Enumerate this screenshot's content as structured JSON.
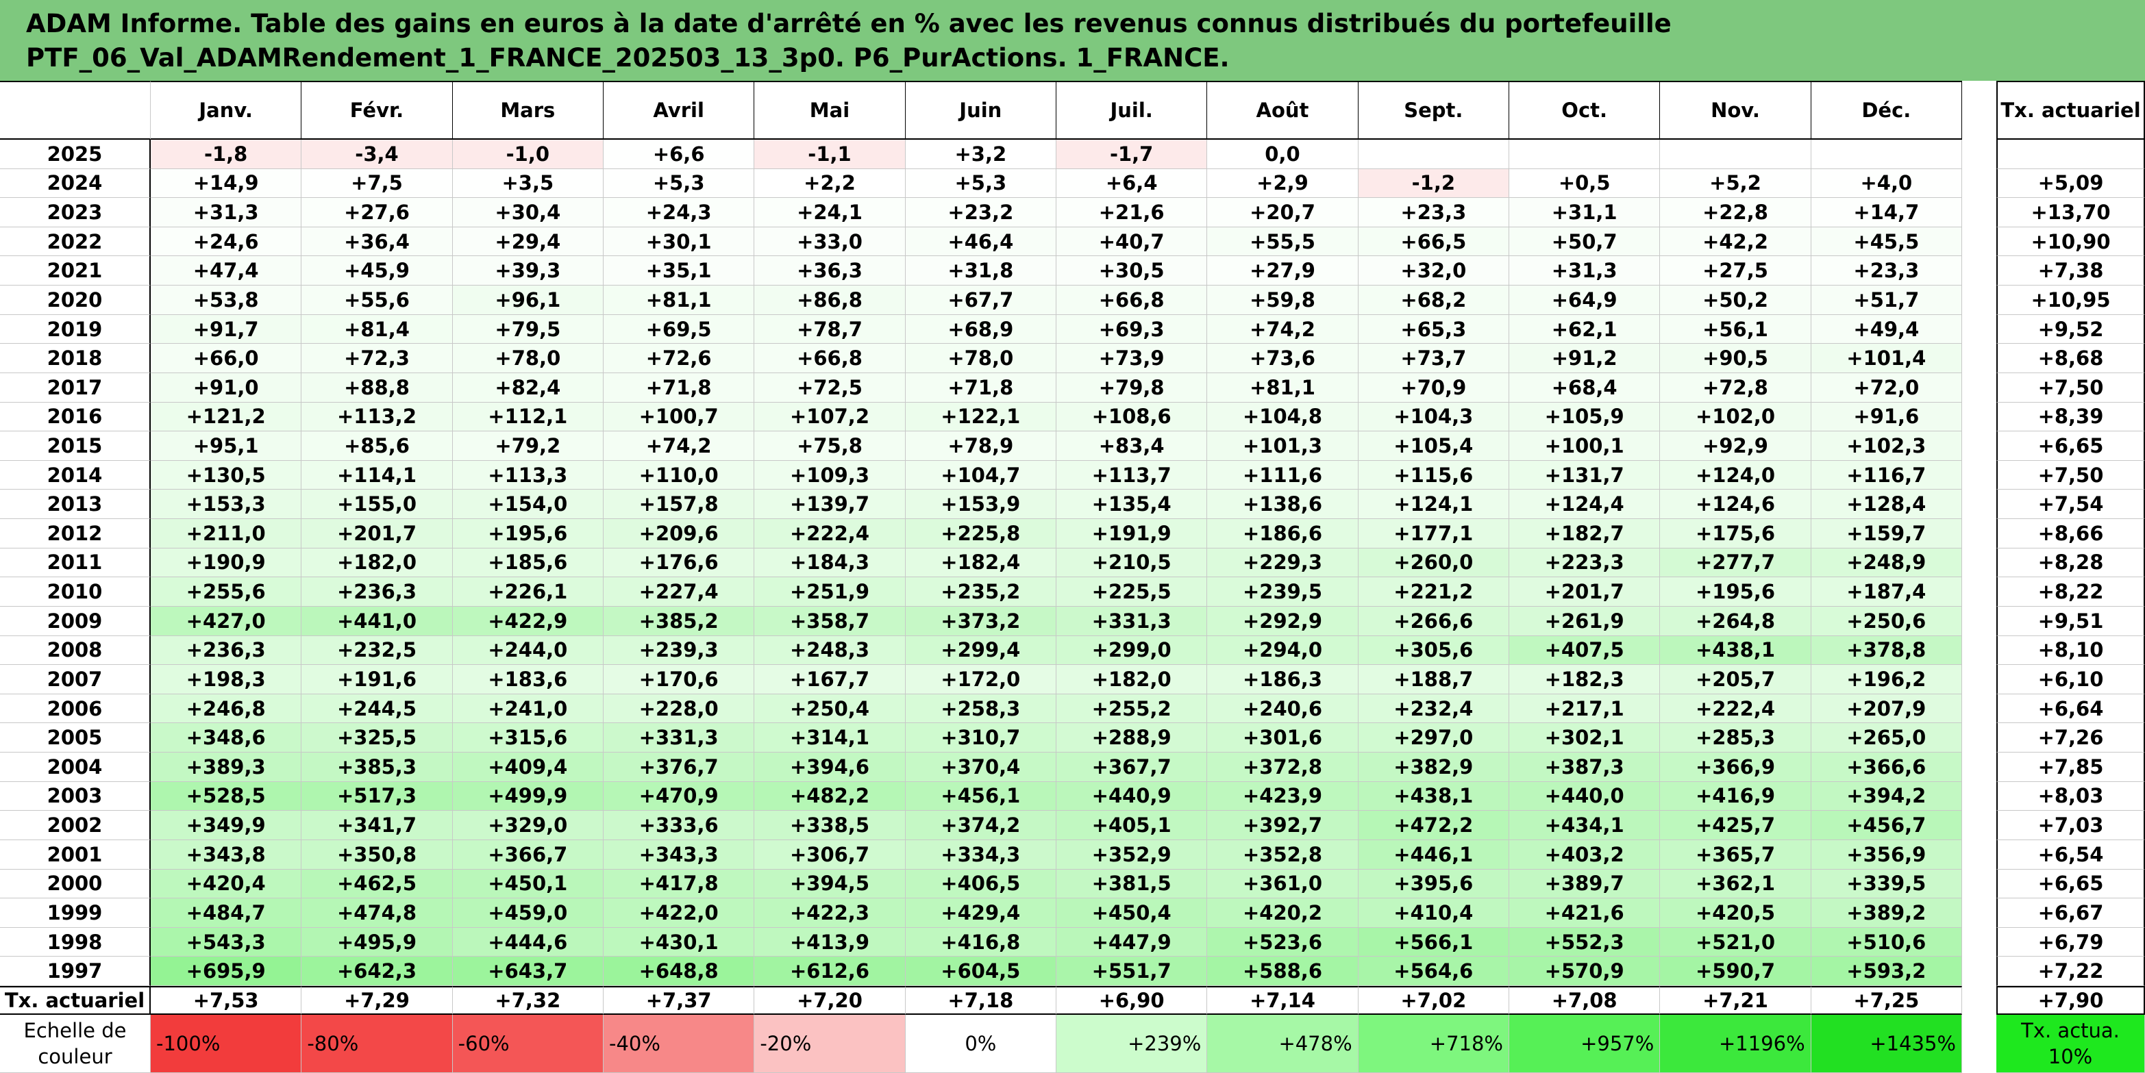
{
  "header": {
    "title_line1": "ADAM Informe. Table des gains en euros à la date d'arrêté en % avec les revenus connus distribués du portefeuille",
    "title_line2": "PTF_06_Val_ADAMRendement_1_FRANCE_202503_13_3p0. P6_PurActions. 1_FRANCE."
  },
  "table": {
    "months": [
      "Janv.",
      "Févr.",
      "Mars",
      "Avril",
      "Mai",
      "Juin",
      "Juil.",
      "Août",
      "Sept.",
      "Oct.",
      "Nov.",
      "Déc."
    ],
    "rate_header": "Tx. actuariel",
    "rows": [
      {
        "year": "2025",
        "values": [
          "-1,8",
          "-3,4",
          "-1,0",
          "+6,6",
          "-1,1",
          "+3,2",
          "-1,7",
          "0,0",
          null,
          null,
          null,
          null
        ],
        "rate": null
      },
      {
        "year": "2024",
        "values": [
          "+14,9",
          "+7,5",
          "+3,5",
          "+5,3",
          "+2,2",
          "+5,3",
          "+6,4",
          "+2,9",
          "-1,2",
          "+0,5",
          "+5,2",
          "+4,0"
        ],
        "rate": "+5,09"
      },
      {
        "year": "2023",
        "values": [
          "+31,3",
          "+27,6",
          "+30,4",
          "+24,3",
          "+24,1",
          "+23,2",
          "+21,6",
          "+20,7",
          "+23,3",
          "+31,1",
          "+22,8",
          "+14,7"
        ],
        "rate": "+13,70"
      },
      {
        "year": "2022",
        "values": [
          "+24,6",
          "+36,4",
          "+29,4",
          "+30,1",
          "+33,0",
          "+46,4",
          "+40,7",
          "+55,5",
          "+66,5",
          "+50,7",
          "+42,2",
          "+45,5"
        ],
        "rate": "+10,90"
      },
      {
        "year": "2021",
        "values": [
          "+47,4",
          "+45,9",
          "+39,3",
          "+35,1",
          "+36,3",
          "+31,8",
          "+30,5",
          "+27,9",
          "+32,0",
          "+31,3",
          "+27,5",
          "+23,3"
        ],
        "rate": "+7,38"
      },
      {
        "year": "2020",
        "values": [
          "+53,8",
          "+55,6",
          "+96,1",
          "+81,1",
          "+86,8",
          "+67,7",
          "+66,8",
          "+59,8",
          "+68,2",
          "+64,9",
          "+50,2",
          "+51,7"
        ],
        "rate": "+10,95"
      },
      {
        "year": "2019",
        "values": [
          "+91,7",
          "+81,4",
          "+79,5",
          "+69,5",
          "+78,7",
          "+68,9",
          "+69,3",
          "+74,2",
          "+65,3",
          "+62,1",
          "+56,1",
          "+49,4"
        ],
        "rate": "+9,52"
      },
      {
        "year": "2018",
        "values": [
          "+66,0",
          "+72,3",
          "+78,0",
          "+72,6",
          "+66,8",
          "+78,0",
          "+73,9",
          "+73,6",
          "+73,7",
          "+91,2",
          "+90,5",
          "+101,4"
        ],
        "rate": "+8,68"
      },
      {
        "year": "2017",
        "values": [
          "+91,0",
          "+88,8",
          "+82,4",
          "+71,8",
          "+72,5",
          "+71,8",
          "+79,8",
          "+81,1",
          "+70,9",
          "+68,4",
          "+72,8",
          "+72,0"
        ],
        "rate": "+7,50"
      },
      {
        "year": "2016",
        "values": [
          "+121,2",
          "+113,2",
          "+112,1",
          "+100,7",
          "+107,2",
          "+122,1",
          "+108,6",
          "+104,8",
          "+104,3",
          "+105,9",
          "+102,0",
          "+91,6"
        ],
        "rate": "+8,39"
      },
      {
        "year": "2015",
        "values": [
          "+95,1",
          "+85,6",
          "+79,2",
          "+74,2",
          "+75,8",
          "+78,9",
          "+83,4",
          "+101,3",
          "+105,4",
          "+100,1",
          "+92,9",
          "+102,3"
        ],
        "rate": "+6,65"
      },
      {
        "year": "2014",
        "values": [
          "+130,5",
          "+114,1",
          "+113,3",
          "+110,0",
          "+109,3",
          "+104,7",
          "+113,7",
          "+111,6",
          "+115,6",
          "+131,7",
          "+124,0",
          "+116,7"
        ],
        "rate": "+7,50"
      },
      {
        "year": "2013",
        "values": [
          "+153,3",
          "+155,0",
          "+154,0",
          "+157,8",
          "+139,7",
          "+153,9",
          "+135,4",
          "+138,6",
          "+124,1",
          "+124,4",
          "+124,6",
          "+128,4"
        ],
        "rate": "+7,54"
      },
      {
        "year": "2012",
        "values": [
          "+211,0",
          "+201,7",
          "+195,6",
          "+209,6",
          "+222,4",
          "+225,8",
          "+191,9",
          "+186,6",
          "+177,1",
          "+182,7",
          "+175,6",
          "+159,7"
        ],
        "rate": "+8,66"
      },
      {
        "year": "2011",
        "values": [
          "+190,9",
          "+182,0",
          "+185,6",
          "+176,6",
          "+184,3",
          "+182,4",
          "+210,5",
          "+229,3",
          "+260,0",
          "+223,3",
          "+277,7",
          "+248,9"
        ],
        "rate": "+8,28"
      },
      {
        "year": "2010",
        "values": [
          "+255,6",
          "+236,3",
          "+226,1",
          "+227,4",
          "+251,9",
          "+235,2",
          "+225,5",
          "+239,5",
          "+221,2",
          "+201,7",
          "+195,6",
          "+187,4"
        ],
        "rate": "+8,22"
      },
      {
        "year": "2009",
        "values": [
          "+427,0",
          "+441,0",
          "+422,9",
          "+385,2",
          "+358,7",
          "+373,2",
          "+331,3",
          "+292,9",
          "+266,6",
          "+261,9",
          "+264,8",
          "+250,6"
        ],
        "rate": "+9,51"
      },
      {
        "year": "2008",
        "values": [
          "+236,3",
          "+232,5",
          "+244,0",
          "+239,3",
          "+248,3",
          "+299,4",
          "+299,0",
          "+294,0",
          "+305,6",
          "+407,5",
          "+438,1",
          "+378,8"
        ],
        "rate": "+8,10"
      },
      {
        "year": "2007",
        "values": [
          "+198,3",
          "+191,6",
          "+183,6",
          "+170,6",
          "+167,7",
          "+172,0",
          "+182,0",
          "+186,3",
          "+188,7",
          "+182,3",
          "+205,7",
          "+196,2"
        ],
        "rate": "+6,10"
      },
      {
        "year": "2006",
        "values": [
          "+246,8",
          "+244,5",
          "+241,0",
          "+228,0",
          "+250,4",
          "+258,3",
          "+255,2",
          "+240,6",
          "+232,4",
          "+217,1",
          "+222,4",
          "+207,9"
        ],
        "rate": "+6,64"
      },
      {
        "year": "2005",
        "values": [
          "+348,6",
          "+325,5",
          "+315,6",
          "+331,3",
          "+314,1",
          "+310,7",
          "+288,9",
          "+301,6",
          "+297,0",
          "+302,1",
          "+285,3",
          "+265,0"
        ],
        "rate": "+7,26"
      },
      {
        "year": "2004",
        "values": [
          "+389,3",
          "+385,3",
          "+409,4",
          "+376,7",
          "+394,6",
          "+370,4",
          "+367,7",
          "+372,8",
          "+382,9",
          "+387,3",
          "+366,9",
          "+366,6"
        ],
        "rate": "+7,85"
      },
      {
        "year": "2003",
        "values": [
          "+528,5",
          "+517,3",
          "+499,9",
          "+470,9",
          "+482,2",
          "+456,1",
          "+440,9",
          "+423,9",
          "+438,1",
          "+440,0",
          "+416,9",
          "+394,2"
        ],
        "rate": "+8,03"
      },
      {
        "year": "2002",
        "values": [
          "+349,9",
          "+341,7",
          "+329,0",
          "+333,6",
          "+338,5",
          "+374,2",
          "+405,1",
          "+392,7",
          "+472,2",
          "+434,1",
          "+425,7",
          "+456,7"
        ],
        "rate": "+7,03"
      },
      {
        "year": "2001",
        "values": [
          "+343,8",
          "+350,8",
          "+366,7",
          "+343,3",
          "+306,7",
          "+334,3",
          "+352,9",
          "+352,8",
          "+446,1",
          "+403,2",
          "+365,7",
          "+356,9"
        ],
        "rate": "+6,54"
      },
      {
        "year": "2000",
        "values": [
          "+420,4",
          "+462,5",
          "+450,1",
          "+417,8",
          "+394,5",
          "+406,5",
          "+381,5",
          "+361,0",
          "+395,6",
          "+389,7",
          "+362,1",
          "+339,5"
        ],
        "rate": "+6,65"
      },
      {
        "year": "1999",
        "values": [
          "+484,7",
          "+474,8",
          "+459,0",
          "+422,0",
          "+422,3",
          "+429,4",
          "+450,4",
          "+420,2",
          "+410,4",
          "+421,6",
          "+420,5",
          "+389,2"
        ],
        "rate": "+6,67"
      },
      {
        "year": "1998",
        "values": [
          "+543,3",
          "+495,9",
          "+444,6",
          "+430,1",
          "+413,9",
          "+416,8",
          "+447,9",
          "+523,6",
          "+566,1",
          "+552,3",
          "+521,0",
          "+510,6"
        ],
        "rate": "+6,79"
      },
      {
        "year": "1997",
        "values": [
          "+695,9",
          "+642,3",
          "+643,7",
          "+648,8",
          "+612,6",
          "+604,5",
          "+551,7",
          "+588,6",
          "+564,6",
          "+570,9",
          "+590,7",
          "+593,2"
        ],
        "rate": "+7,22"
      }
    ],
    "summary": {
      "label": "Tx. actuariel",
      "values": [
        "+7,53",
        "+7,29",
        "+7,32",
        "+7,37",
        "+7,20",
        "+7,18",
        "+6,90",
        "+7,14",
        "+7,02",
        "+7,08",
        "+7,21",
        "+7,25"
      ],
      "rate": "+7,90"
    },
    "scale": {
      "label": "Echelle de couleur",
      "values": [
        "-100%",
        "-80%",
        "-60%",
        "-40%",
        "-20%",
        "0%",
        "+239%",
        "+478%",
        "+718%",
        "+957%",
        "+1196%",
        "+1435%"
      ],
      "rate": "Tx. actua. 10%"
    }
  }
}
